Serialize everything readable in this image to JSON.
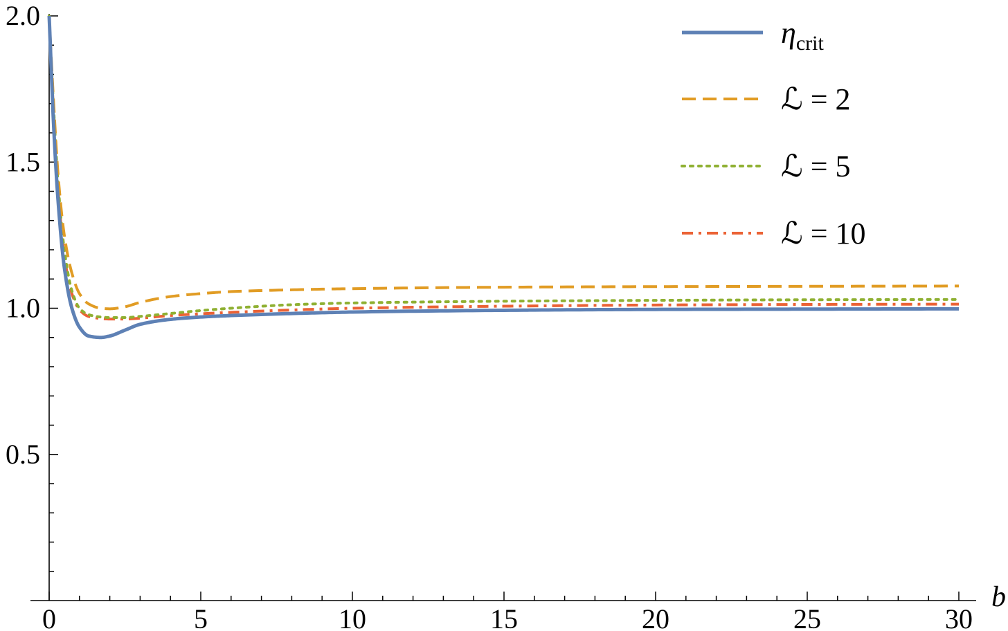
{
  "chart_data": {
    "type": "line",
    "xlabel": "b",
    "ylabel": "",
    "xlim": [
      0,
      30
    ],
    "ylim": [
      0,
      2.0
    ],
    "x_ticks": [
      "0",
      "5",
      "10",
      "15",
      "20",
      "25",
      "30"
    ],
    "y_ticks": [
      "0.5",
      "1.0",
      "1.5",
      "2.0"
    ],
    "grid": false,
    "legend_position": "top-right",
    "series": [
      {
        "name": "η_crit",
        "legend_main": "η",
        "legend_sub": "crit",
        "color": "#5E81B5",
        "style": "solid",
        "x": [
          0,
          0.15,
          0.3,
          0.5,
          0.75,
          1.0,
          1.3,
          1.7,
          2.0,
          2.5,
          3.0,
          4.0,
          5.0,
          6.0,
          8.0,
          10.0,
          15.0,
          20.0,
          25.0,
          30.0
        ],
        "y": [
          2.0,
          1.62,
          1.36,
          1.14,
          1.0,
          0.935,
          0.905,
          0.9,
          0.905,
          0.925,
          0.945,
          0.962,
          0.97,
          0.975,
          0.982,
          0.987,
          0.993,
          0.996,
          0.997,
          0.998
        ]
      },
      {
        "name": "ℒ = 2",
        "color": "#E19C24",
        "style": "dashed",
        "x": [
          0,
          0.15,
          0.3,
          0.5,
          0.75,
          1.0,
          1.3,
          1.7,
          2.0,
          2.5,
          3.0,
          4.0,
          5.0,
          6.0,
          8.0,
          10.0,
          15.0,
          20.0,
          25.0,
          30.0
        ],
        "y": [
          2.0,
          1.7,
          1.45,
          1.25,
          1.12,
          1.05,
          1.015,
          1.0,
          0.998,
          1.005,
          1.02,
          1.04,
          1.05,
          1.057,
          1.063,
          1.067,
          1.072,
          1.074,
          1.075,
          1.076
        ]
      },
      {
        "name": "ℒ = 5",
        "color": "#8FB032",
        "style": "dotted",
        "x": [
          0,
          0.15,
          0.3,
          0.5,
          0.75,
          1.0,
          1.3,
          1.7,
          2.0,
          2.5,
          3.0,
          4.0,
          5.0,
          6.0,
          8.0,
          10.0,
          15.0,
          20.0,
          25.0,
          30.0
        ],
        "y": [
          2.0,
          1.68,
          1.42,
          1.2,
          1.06,
          1.0,
          0.978,
          0.97,
          0.968,
          0.968,
          0.972,
          0.982,
          0.992,
          1.0,
          1.012,
          1.018,
          1.024,
          1.027,
          1.029,
          1.03
        ]
      },
      {
        "name": "ℒ = 10",
        "color": "#EB6235",
        "style": "dashdot",
        "x": [
          0,
          0.15,
          0.3,
          0.5,
          0.75,
          1.0,
          1.3,
          1.7,
          2.0,
          2.5,
          3.0,
          4.0,
          5.0,
          6.0,
          8.0,
          10.0,
          15.0,
          20.0,
          25.0,
          30.0
        ],
        "y": [
          2.0,
          1.66,
          1.4,
          1.18,
          1.05,
          0.995,
          0.972,
          0.965,
          0.963,
          0.963,
          0.966,
          0.975,
          0.981,
          0.986,
          0.994,
          1.0,
          1.007,
          1.011,
          1.013,
          1.014
        ]
      }
    ]
  }
}
